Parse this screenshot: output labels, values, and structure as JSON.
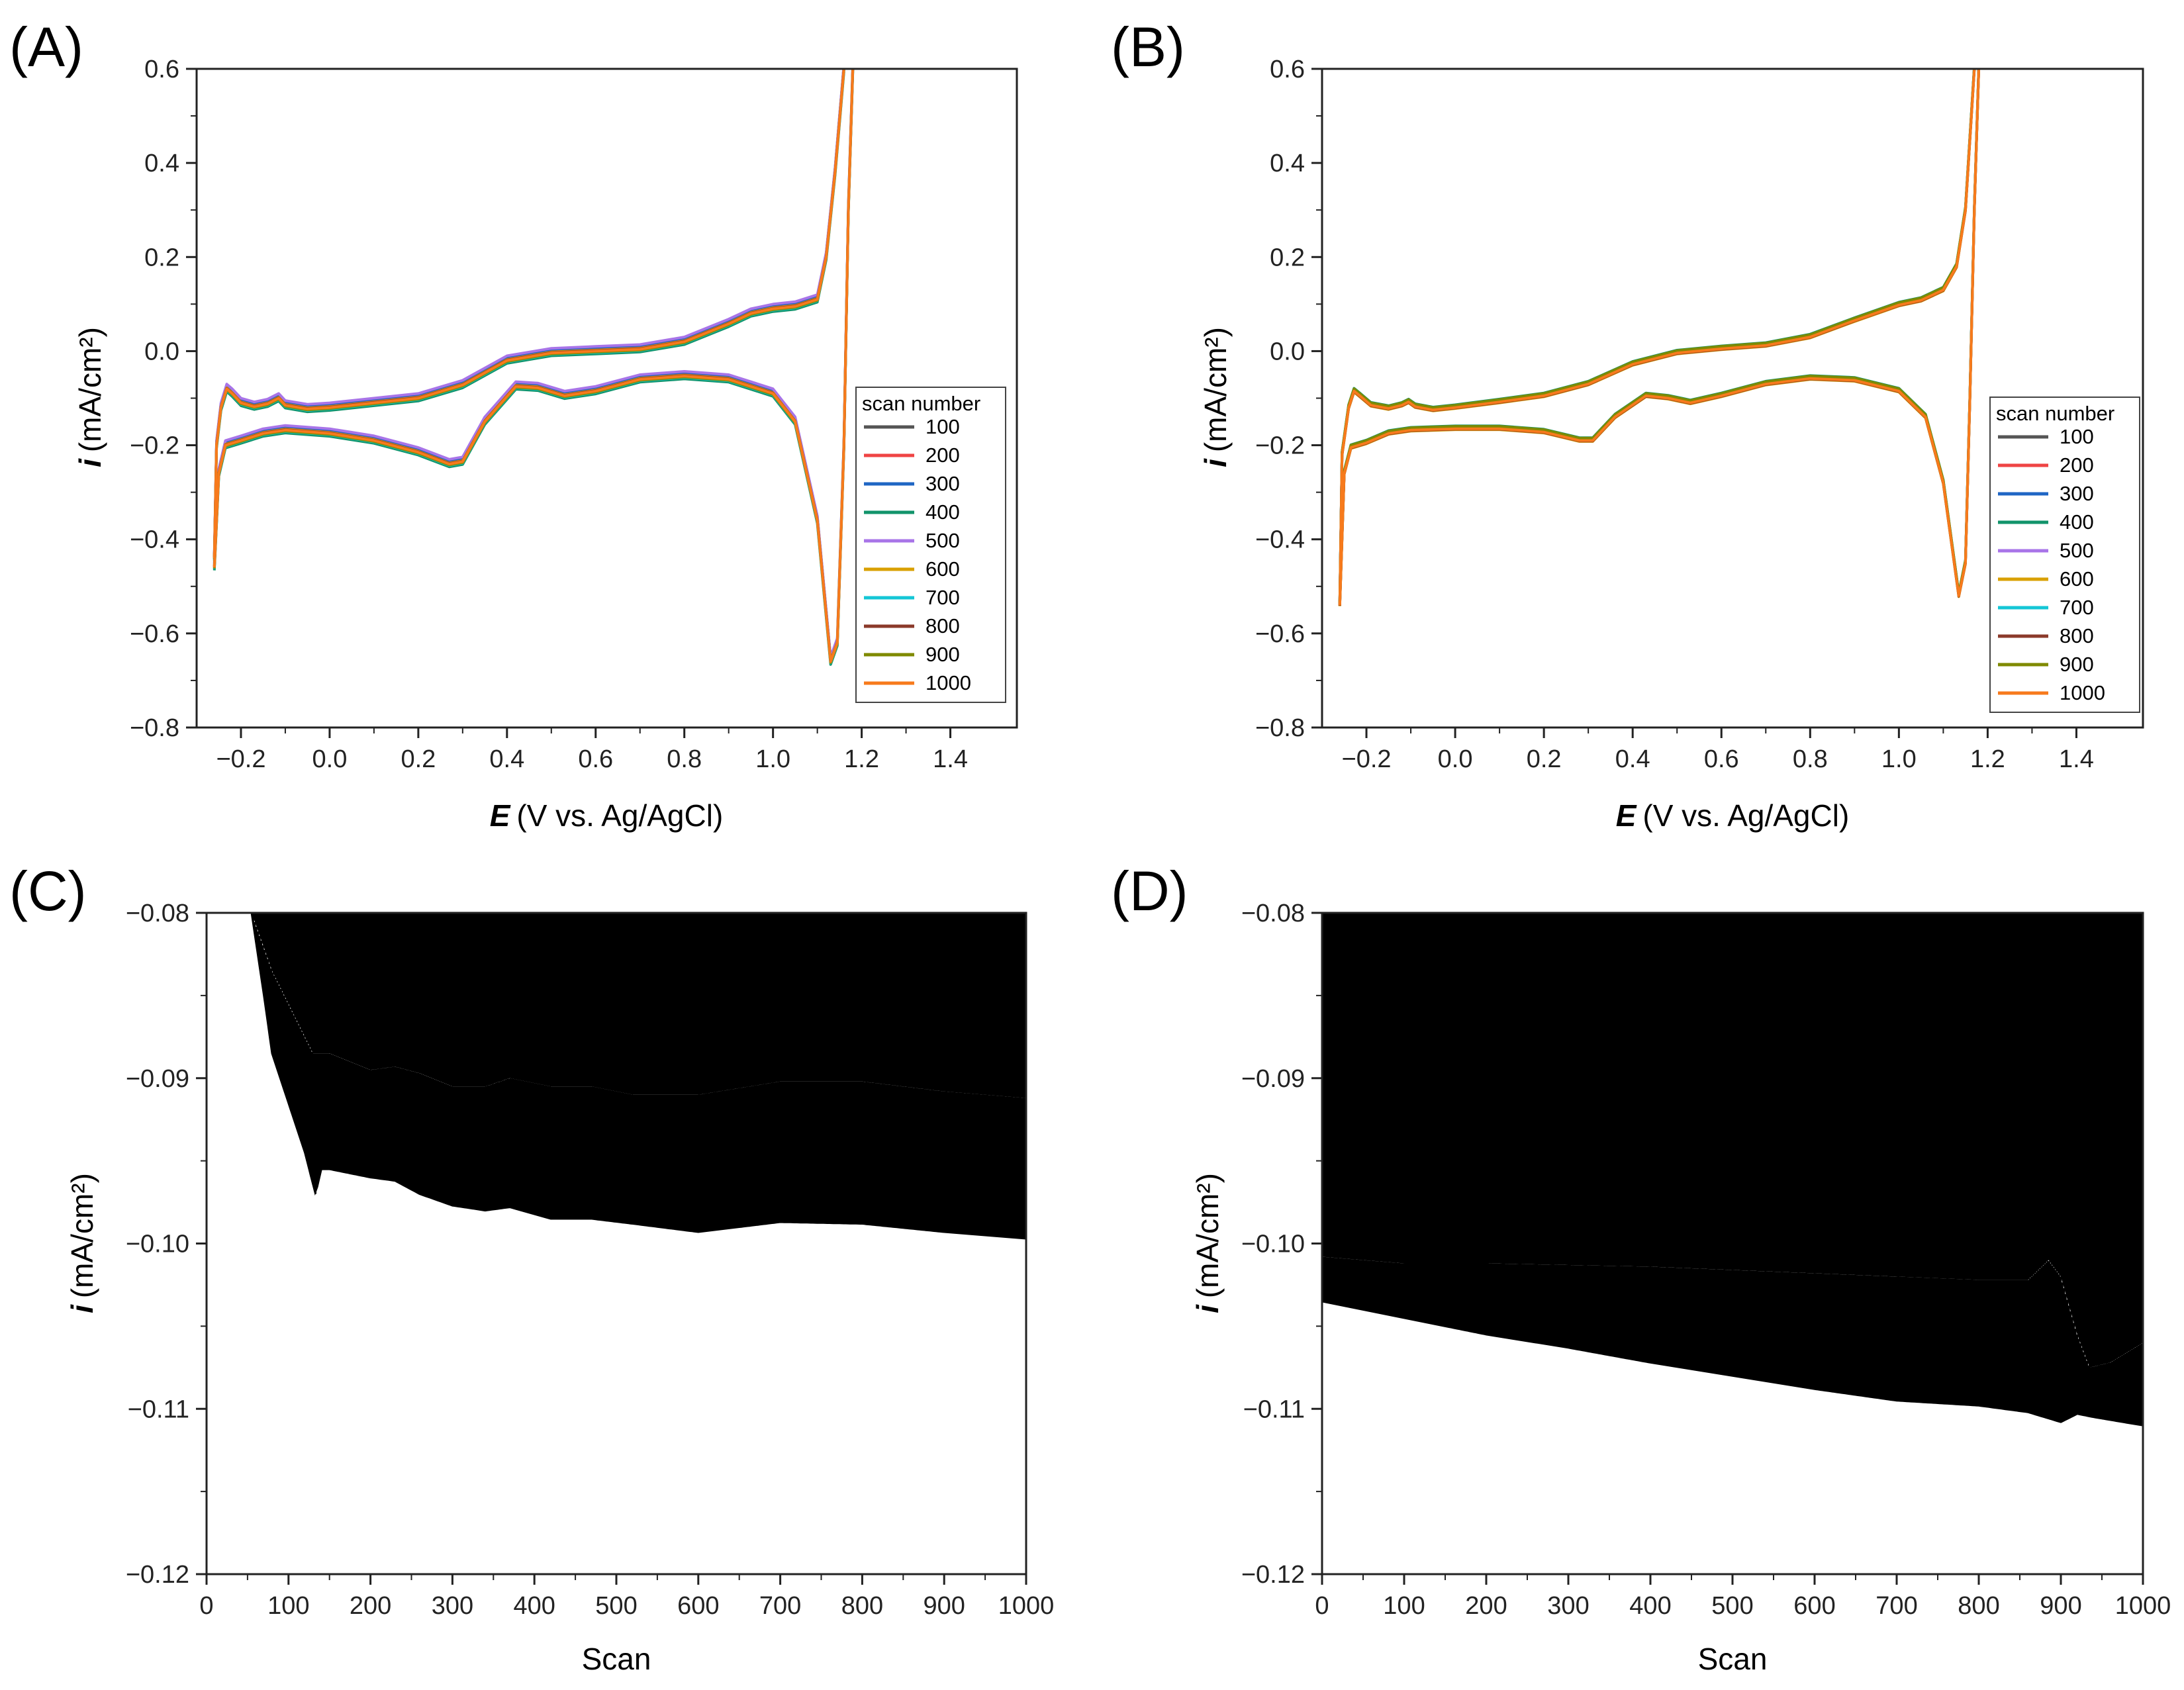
{
  "chart_data": [
    {
      "type": "line",
      "panel_label": "(A)",
      "xlabel_var": "E",
      "xlabel": "(V vs. Ag/AgCl)",
      "ylabel_var": "i",
      "ylabel": "(mA/cm²)",
      "xlim": [
        -0.3,
        1.55
      ],
      "ylim": [
        -0.8,
        0.6
      ],
      "xticks": [
        "-0.2",
        "0.0",
        "0.2",
        "0.4",
        "0.6",
        "0.8",
        "1.0",
        "1.2",
        "1.4"
      ],
      "xtick_values": [
        -0.2,
        0.0,
        0.2,
        0.4,
        0.6,
        0.8,
        1.0,
        1.2,
        1.4
      ],
      "yticks": [
        "0.6",
        "0.4",
        "0.2",
        "0.0",
        "-0.2",
        "-0.4",
        "-0.6",
        "-0.8"
      ],
      "ytick_values": [
        0.6,
        0.4,
        0.2,
        0.0,
        -0.2,
        -0.4,
        -0.6,
        -0.8
      ],
      "legend_title": "scan number",
      "legend_position": "right",
      "series": [
        {
          "name": "100",
          "color": "#555555",
          "offset": 0.004
        },
        {
          "name": "200",
          "color": "#ef4444",
          "offset": 0.003
        },
        {
          "name": "300",
          "color": "#1f66c4",
          "offset": 0.008
        },
        {
          "name": "400",
          "color": "#12946b",
          "offset": -0.006
        },
        {
          "name": "500",
          "color": "#a874e8",
          "offset": 0.01
        },
        {
          "name": "600",
          "color": "#d9a000",
          "offset": 0.002
        },
        {
          "name": "700",
          "color": "#14c6d6",
          "offset": -0.003
        },
        {
          "name": "800",
          "color": "#8b3a2a",
          "offset": 0.001
        },
        {
          "name": "900",
          "color": "#7f8a00",
          "offset": -0.002
        },
        {
          "name": "1000",
          "color": "#f77a1c",
          "offset": 0.0
        }
      ],
      "upper_branch": [
        [
          -0.26,
          -0.44
        ],
        [
          -0.255,
          -0.2
        ],
        [
          -0.245,
          -0.12
        ],
        [
          -0.232,
          -0.08
        ],
        [
          -0.22,
          -0.09
        ],
        [
          -0.2,
          -0.11
        ],
        [
          -0.17,
          -0.118
        ],
        [
          -0.14,
          -0.112
        ],
        [
          -0.115,
          -0.1
        ],
        [
          -0.1,
          -0.115
        ],
        [
          -0.05,
          -0.123
        ],
        [
          0.0,
          -0.12
        ],
        [
          0.1,
          -0.11
        ],
        [
          0.2,
          -0.1
        ],
        [
          0.3,
          -0.072
        ],
        [
          0.4,
          -0.02
        ],
        [
          0.5,
          -0.004
        ],
        [
          0.6,
          0.0
        ],
        [
          0.7,
          0.004
        ],
        [
          0.8,
          0.02
        ],
        [
          0.9,
          0.058
        ],
        [
          0.95,
          0.08
        ],
        [
          1.0,
          0.09
        ],
        [
          1.05,
          0.095
        ],
        [
          1.1,
          0.11
        ],
        [
          1.12,
          0.2
        ],
        [
          1.14,
          0.38
        ],
        [
          1.16,
          0.6
        ]
      ],
      "lower_branch": [
        [
          -0.26,
          -0.46
        ],
        [
          -0.25,
          -0.26
        ],
        [
          -0.235,
          -0.2
        ],
        [
          -0.2,
          -0.19
        ],
        [
          -0.15,
          -0.175
        ],
        [
          -0.1,
          -0.168
        ],
        [
          0.0,
          -0.175
        ],
        [
          0.1,
          -0.19
        ],
        [
          0.2,
          -0.215
        ],
        [
          0.27,
          -0.24
        ],
        [
          0.3,
          -0.235
        ],
        [
          0.35,
          -0.15
        ],
        [
          0.42,
          -0.075
        ],
        [
          0.47,
          -0.078
        ],
        [
          0.53,
          -0.095
        ],
        [
          0.6,
          -0.085
        ],
        [
          0.7,
          -0.06
        ],
        [
          0.8,
          -0.053
        ],
        [
          0.9,
          -0.06
        ],
        [
          1.0,
          -0.09
        ],
        [
          1.05,
          -0.15
        ],
        [
          1.1,
          -0.36
        ],
        [
          1.13,
          -0.66
        ],
        [
          1.145,
          -0.62
        ],
        [
          1.16,
          -0.2
        ],
        [
          1.17,
          0.3
        ],
        [
          1.18,
          0.6
        ]
      ]
    },
    {
      "type": "line",
      "panel_label": "(B)",
      "xlabel_var": "E",
      "xlabel": "(V vs. Ag/AgCl)",
      "ylabel_var": "i",
      "ylabel": "(mA/cm²)",
      "xlim": [
        -0.3,
        1.55
      ],
      "ylim": [
        -0.8,
        0.6
      ],
      "xticks": [
        "-0.2",
        "0.0",
        "0.2",
        "0.4",
        "0.6",
        "0.8",
        "1.0",
        "1.2",
        "1.4"
      ],
      "xtick_values": [
        -0.2,
        0.0,
        0.2,
        0.4,
        0.6,
        0.8,
        1.0,
        1.2,
        1.4
      ],
      "yticks": [
        "0.6",
        "0.4",
        "0.2",
        "0.0",
        "-0.2",
        "-0.4",
        "-0.6",
        "-0.8"
      ],
      "ytick_values": [
        0.6,
        0.4,
        0.2,
        0.0,
        -0.2,
        -0.4,
        -0.6,
        -0.8
      ],
      "legend_title": "scan number",
      "legend_position": "right",
      "series": [
        {
          "name": "100",
          "color": "#555555",
          "offset": 0.003
        },
        {
          "name": "200",
          "color": "#ef4444",
          "offset": 0.002
        },
        {
          "name": "300",
          "color": "#1f66c4",
          "offset": 0.004
        },
        {
          "name": "400",
          "color": "#12946b",
          "offset": 0.006
        },
        {
          "name": "500",
          "color": "#a874e8",
          "offset": 0.001
        },
        {
          "name": "600",
          "color": "#d9a000",
          "offset": -0.002
        },
        {
          "name": "700",
          "color": "#14c6d6",
          "offset": 0.002
        },
        {
          "name": "800",
          "color": "#8b3a2a",
          "offset": -0.001
        },
        {
          "name": "900",
          "color": "#7f8a00",
          "offset": 0.005
        },
        {
          "name": "1000",
          "color": "#f77a1c",
          "offset": 0.0
        }
      ],
      "upper_branch": [
        [
          -0.26,
          -0.54
        ],
        [
          -0.255,
          -0.22
        ],
        [
          -0.24,
          -0.12
        ],
        [
          -0.228,
          -0.085
        ],
        [
          -0.215,
          -0.095
        ],
        [
          -0.19,
          -0.115
        ],
        [
          -0.15,
          -0.122
        ],
        [
          -0.12,
          -0.115
        ],
        [
          -0.105,
          -0.108
        ],
        [
          -0.09,
          -0.118
        ],
        [
          -0.05,
          -0.125
        ],
        [
          0.0,
          -0.12
        ],
        [
          0.1,
          -0.108
        ],
        [
          0.2,
          -0.095
        ],
        [
          0.3,
          -0.07
        ],
        [
          0.4,
          -0.028
        ],
        [
          0.5,
          -0.004
        ],
        [
          0.6,
          0.005
        ],
        [
          0.7,
          0.012
        ],
        [
          0.8,
          0.03
        ],
        [
          0.9,
          0.065
        ],
        [
          1.0,
          0.098
        ],
        [
          1.05,
          0.108
        ],
        [
          1.1,
          0.13
        ],
        [
          1.13,
          0.18
        ],
        [
          1.15,
          0.3
        ],
        [
          1.17,
          0.6
        ]
      ],
      "lower_branch": [
        [
          -0.26,
          -0.54
        ],
        [
          -0.25,
          -0.26
        ],
        [
          -0.235,
          -0.205
        ],
        [
          -0.2,
          -0.195
        ],
        [
          -0.15,
          -0.175
        ],
        [
          -0.1,
          -0.168
        ],
        [
          0.0,
          -0.165
        ],
        [
          0.1,
          -0.165
        ],
        [
          0.2,
          -0.172
        ],
        [
          0.28,
          -0.19
        ],
        [
          0.31,
          -0.19
        ],
        [
          0.36,
          -0.14
        ],
        [
          0.43,
          -0.095
        ],
        [
          0.48,
          -0.1
        ],
        [
          0.53,
          -0.11
        ],
        [
          0.6,
          -0.095
        ],
        [
          0.7,
          -0.07
        ],
        [
          0.8,
          -0.058
        ],
        [
          0.9,
          -0.062
        ],
        [
          1.0,
          -0.085
        ],
        [
          1.06,
          -0.14
        ],
        [
          1.1,
          -0.28
        ],
        [
          1.135,
          -0.52
        ],
        [
          1.15,
          -0.45
        ],
        [
          1.16,
          -0.1
        ],
        [
          1.17,
          0.3
        ],
        [
          1.18,
          0.6
        ]
      ]
    },
    {
      "type": "area",
      "panel_label": "(C)",
      "xlabel": "Scan",
      "ylabel_var": "i",
      "ylabel": "(mA/cm²)",
      "xlim": [
        0,
        1000
      ],
      "ylim": [
        -0.12,
        -0.08
      ],
      "xticks": [
        "0",
        "100",
        "200",
        "300",
        "400",
        "500",
        "600",
        "700",
        "800",
        "900",
        "1000"
      ],
      "xtick_values": [
        0,
        100,
        200,
        300,
        400,
        500,
        600,
        700,
        800,
        900,
        1000
      ],
      "yticks": [
        "-0.08",
        "-0.09",
        "-0.10",
        "-0.11",
        "-0.12"
      ],
      "ytick_values": [
        -0.08,
        -0.09,
        -0.1,
        -0.11,
        -0.12
      ],
      "x_start": 55,
      "lower_envelope": [
        [
          55,
          -0.08
        ],
        [
          70,
          -0.085
        ],
        [
          80,
          -0.0885
        ],
        [
          100,
          -0.0915
        ],
        [
          120,
          -0.0945
        ],
        [
          133,
          -0.097
        ],
        [
          140,
          -0.0955
        ],
        [
          150,
          -0.0955
        ],
        [
          200,
          -0.096
        ],
        [
          230,
          -0.0962
        ],
        [
          260,
          -0.097
        ],
        [
          300,
          -0.0977
        ],
        [
          340,
          -0.098
        ],
        [
          370,
          -0.0978
        ],
        [
          420,
          -0.0985
        ],
        [
          470,
          -0.0985
        ],
        [
          520,
          -0.0988
        ],
        [
          600,
          -0.0993
        ],
        [
          650,
          -0.099
        ],
        [
          700,
          -0.0987
        ],
        [
          800,
          -0.0988
        ],
        [
          900,
          -0.0993
        ],
        [
          1000,
          -0.0997
        ]
      ],
      "upper_envelope": [
        [
          55,
          -0.08
        ],
        [
          80,
          -0.0835
        ],
        [
          100,
          -0.0855
        ],
        [
          130,
          -0.0885
        ],
        [
          150,
          -0.0885
        ],
        [
          200,
          -0.0895
        ],
        [
          230,
          -0.0893
        ],
        [
          260,
          -0.0897
        ],
        [
          300,
          -0.0905
        ],
        [
          340,
          -0.0905
        ],
        [
          370,
          -0.09
        ],
        [
          420,
          -0.0905
        ],
        [
          470,
          -0.0905
        ],
        [
          520,
          -0.091
        ],
        [
          600,
          -0.091
        ],
        [
          700,
          -0.0902
        ],
        [
          800,
          -0.0902
        ],
        [
          900,
          -0.0908
        ],
        [
          1000,
          -0.0912
        ]
      ]
    },
    {
      "type": "area",
      "panel_label": "(D)",
      "xlabel": "Scan",
      "ylabel_var": "i",
      "ylabel": "(mA/cm²)",
      "xlim": [
        0,
        1000
      ],
      "ylim": [
        -0.12,
        -0.08
      ],
      "xticks": [
        "0",
        "100",
        "200",
        "300",
        "400",
        "500",
        "600",
        "700",
        "800",
        "900",
        "1000"
      ],
      "xtick_values": [
        0,
        100,
        200,
        300,
        400,
        500,
        600,
        700,
        800,
        900,
        1000
      ],
      "yticks": [
        "-0.08",
        "-0.09",
        "-0.10",
        "-0.11",
        "-0.12"
      ],
      "ytick_values": [
        -0.08,
        -0.09,
        -0.1,
        -0.11,
        -0.12
      ],
      "x_start": 0,
      "lower_envelope": [
        [
          0,
          -0.1035
        ],
        [
          100,
          -0.1045
        ],
        [
          200,
          -0.1055
        ],
        [
          300,
          -0.1063
        ],
        [
          400,
          -0.1072
        ],
        [
          500,
          -0.108
        ],
        [
          600,
          -0.1088
        ],
        [
          700,
          -0.1095
        ],
        [
          800,
          -0.1098
        ],
        [
          860,
          -0.1102
        ],
        [
          900,
          -0.1108
        ],
        [
          920,
          -0.1103
        ],
        [
          940,
          -0.1105
        ],
        [
          1000,
          -0.111
        ]
      ],
      "upper_envelope": [
        [
          0,
          -0.1008
        ],
        [
          100,
          -0.1012
        ],
        [
          200,
          -0.1012
        ],
        [
          300,
          -0.1013
        ],
        [
          400,
          -0.1014
        ],
        [
          500,
          -0.1016
        ],
        [
          600,
          -0.1018
        ],
        [
          700,
          -0.102
        ],
        [
          800,
          -0.1022
        ],
        [
          860,
          -0.1022
        ],
        [
          885,
          -0.101
        ],
        [
          900,
          -0.102
        ],
        [
          920,
          -0.1055
        ],
        [
          935,
          -0.1075
        ],
        [
          960,
          -0.1072
        ],
        [
          1000,
          -0.106
        ]
      ]
    }
  ]
}
